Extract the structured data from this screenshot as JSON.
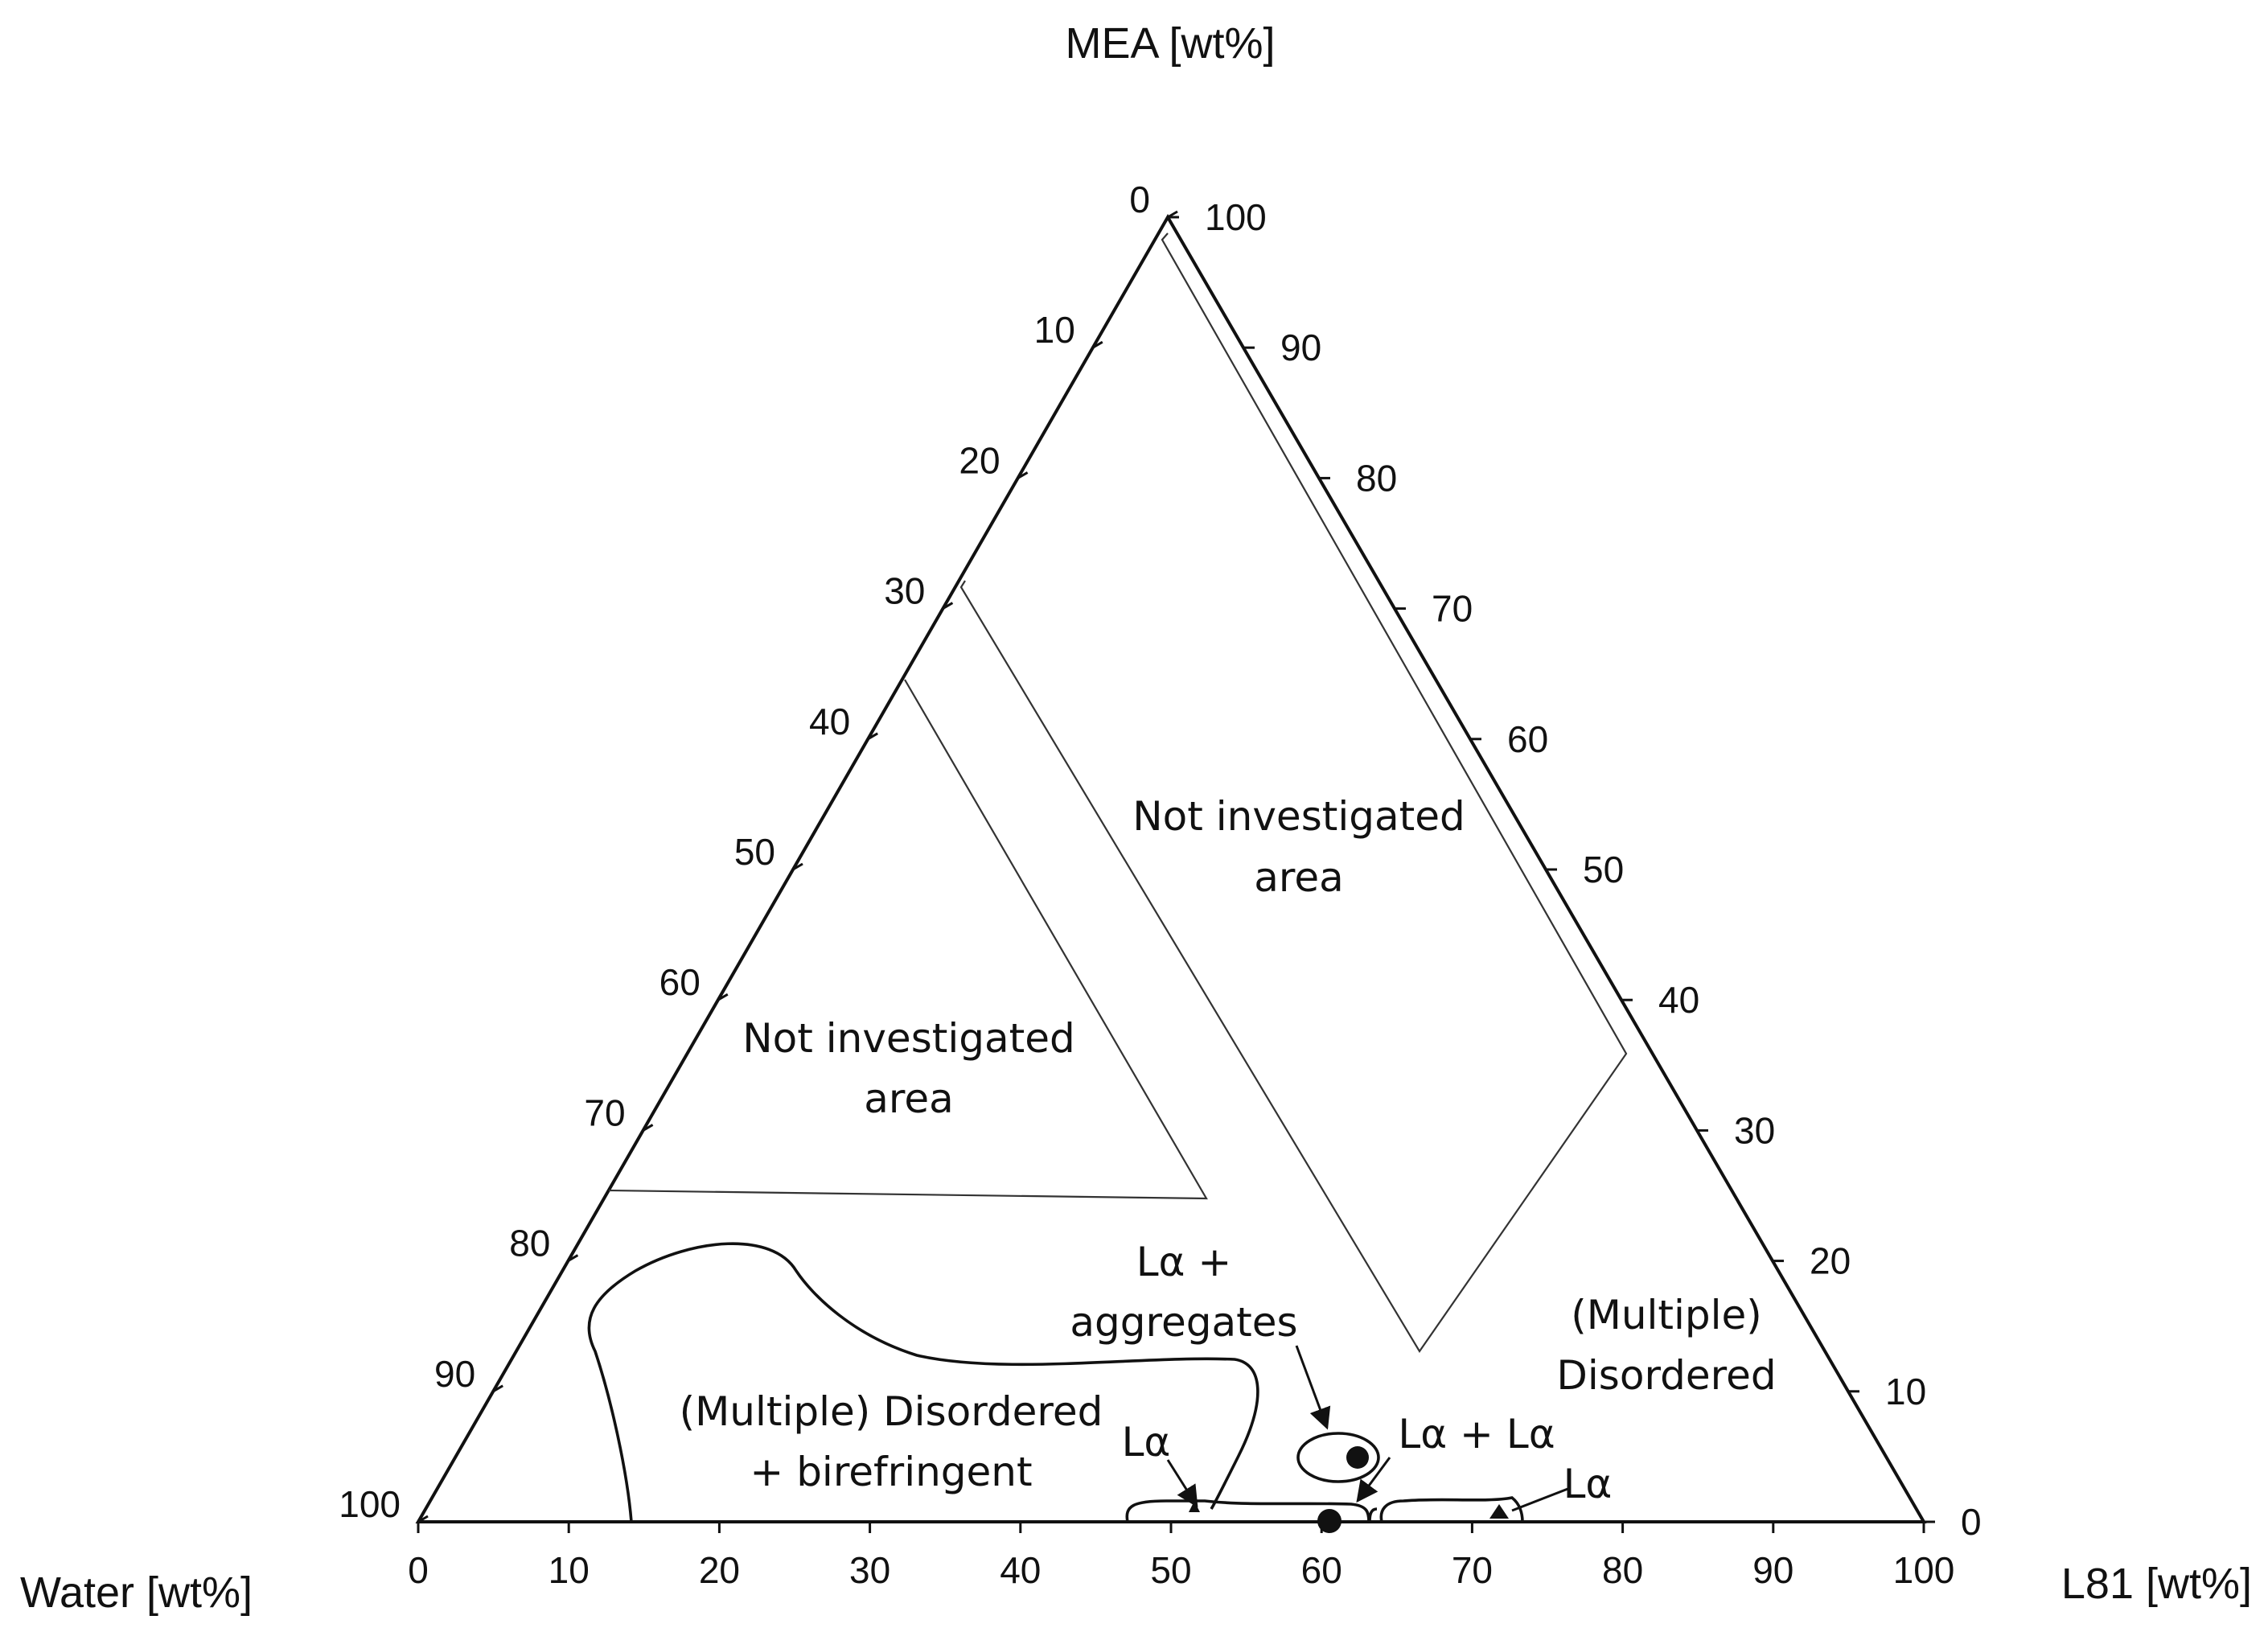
{
  "axes": {
    "top_title": "MEA [wt%]",
    "left_title": "Water [wt%]",
    "right_title": "L81 [wt%]",
    "bottom_ticks": [
      "0",
      "10",
      "20",
      "30",
      "40",
      "50",
      "60",
      "70",
      "80",
      "90",
      "100"
    ],
    "left_ticks": [
      "0",
      "10",
      "20",
      "30",
      "40",
      "50",
      "60",
      "70",
      "80",
      "90",
      "100"
    ],
    "right_ticks": [
      "100",
      "90",
      "80",
      "70",
      "60",
      "50",
      "40",
      "30",
      "20",
      "10",
      "0"
    ]
  },
  "regions": {
    "not_investigated_1_line1": "Not investigated",
    "not_investigated_1_line2": "area",
    "not_investigated_2_line1": "Not investigated",
    "not_investigated_2_line2": "area",
    "la_aggregates_line1": "Lα +",
    "la_aggregates_line2": "aggregates",
    "multiple_disordered_right_line1": "(Multiple)",
    "multiple_disordered_right_line2": "Disordered",
    "multiple_disordered_birefringent_line1": "(Multiple) Disordered",
    "multiple_disordered_birefringent_line2": "+ birefringent",
    "la_left": "Lα",
    "la_plus_la": "Lα + Lα",
    "la_right": "Lα"
  },
  "colors": {
    "line": "#111111",
    "background": "#ffffff"
  }
}
